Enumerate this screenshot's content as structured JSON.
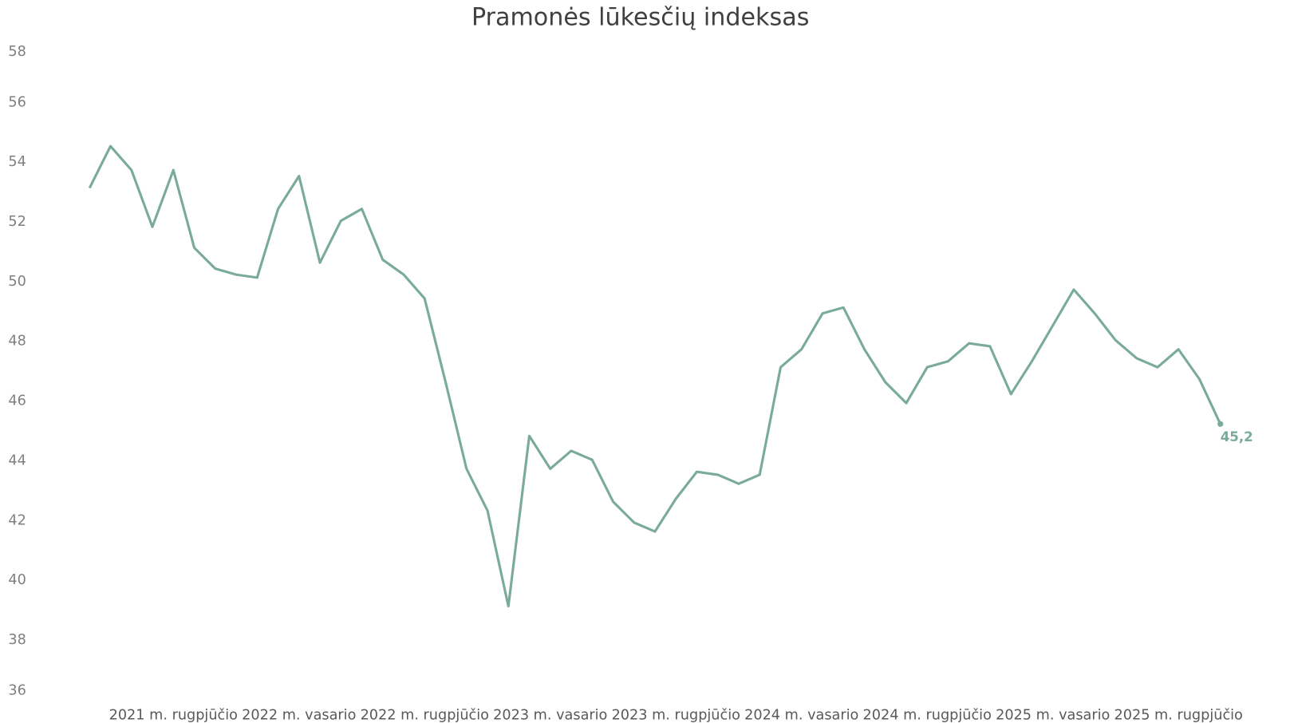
{
  "chart_data": {
    "type": "line",
    "title": "Pramonės lūkesčių indeksas",
    "xlabel": "",
    "ylabel": "",
    "ylim": [
      36,
      58
    ],
    "yticks": [
      "36",
      "38",
      "40",
      "42",
      "44",
      "46",
      "48",
      "50",
      "52",
      "54",
      "56",
      "58"
    ],
    "grid": false,
    "legend": "none",
    "line_color": "#7aab98",
    "x": [
      "2021-04",
      "2021-05",
      "2021-06",
      "2021-07",
      "2021-08",
      "2021-09",
      "2021-10",
      "2021-11",
      "2021-12",
      "2022-01",
      "2022-02",
      "2022-03",
      "2022-04",
      "2022-05",
      "2022-06",
      "2022-07",
      "2022-08",
      "2022-09",
      "2022-10",
      "2022-11",
      "2022-12",
      "2023-01",
      "2023-02",
      "2023-03",
      "2023-04",
      "2023-05",
      "2023-06",
      "2023-07",
      "2023-08",
      "2023-09",
      "2023-10",
      "2023-11",
      "2023-12",
      "2024-01",
      "2024-02",
      "2024-03",
      "2024-04",
      "2024-05",
      "2024-06",
      "2024-07",
      "2024-08",
      "2024-09",
      "2024-10",
      "2024-11",
      "2024-12",
      "2025-01",
      "2025-02",
      "2025-03",
      "2025-04",
      "2025-05",
      "2025-06",
      "2025-07",
      "2025-08",
      "2025-09",
      "2025-10"
    ],
    "values": [
      53.1,
      54.5,
      53.7,
      51.8,
      53.7,
      51.1,
      50.4,
      50.2,
      50.1,
      52.4,
      53.5,
      50.6,
      52.0,
      52.4,
      50.7,
      50.2,
      49.4,
      46.6,
      43.7,
      42.3,
      39.1,
      44.8,
      43.7,
      44.3,
      44.0,
      42.6,
      41.9,
      41.6,
      42.7,
      43.6,
      43.5,
      43.2,
      43.5,
      47.1,
      47.7,
      48.9,
      49.1,
      47.7,
      46.6,
      45.9,
      47.1,
      47.3,
      47.9,
      47.8,
      46.2,
      47.3,
      48.5,
      49.7,
      48.9,
      48.0,
      47.4,
      47.1,
      47.7,
      46.7,
      45.2
    ],
    "xtick_labels": [
      {
        "index": 4,
        "label": "2021 m. rugpjūčio"
      },
      {
        "index": 10,
        "label": "2022 m. vasario"
      },
      {
        "index": 16,
        "label": "2022 m. rugpjūčio"
      },
      {
        "index": 22,
        "label": "2023 m. vasario"
      },
      {
        "index": 28,
        "label": "2023 m. rugpjūčio"
      },
      {
        "index": 34,
        "label": "2024 m. vasario"
      },
      {
        "index": 40,
        "label": "2024 m. rugpjūčio"
      },
      {
        "index": 46,
        "label": "2025 m. vasario"
      },
      {
        "index": 52,
        "label": "2025 m. rugpjūčio"
      }
    ],
    "last_value_label": "45,2"
  }
}
